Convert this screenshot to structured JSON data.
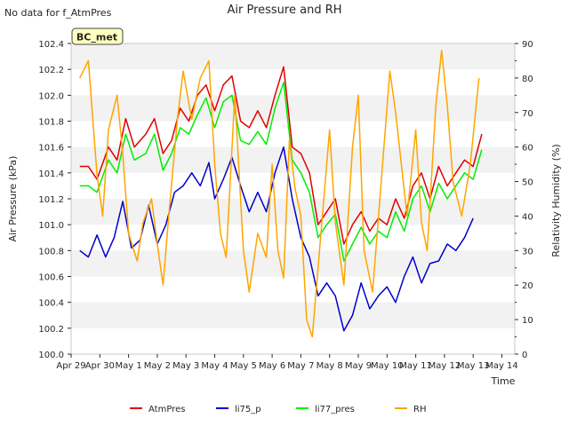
{
  "chart_data": {
    "type": "line",
    "title": "Air Pressure and RH",
    "corner_note": "No data for f_AtmPres",
    "site_badge": "BC_met",
    "xlabel": "Time",
    "ylabel_left": "Air Pressure (kPa)",
    "ylabel_right": "Relativity Humidity (%)",
    "x_ticks": [
      "Apr 29",
      "Apr 30",
      "May 1",
      "May 2",
      "May 3",
      "May 4",
      "May 5",
      "May 6",
      "May 7",
      "May 8",
      "May 9",
      "May 10",
      "May 11",
      "May 12",
      "May 13",
      "May 14"
    ],
    "ylim_left": [
      100.0,
      102.4
    ],
    "y_ticks_left": [
      "100.0",
      "100.2",
      "100.4",
      "100.6",
      "100.8",
      "101.0",
      "101.2",
      "101.4",
      "101.6",
      "101.8",
      "102.0",
      "102.2",
      "102.4"
    ],
    "ylim_right": [
      0,
      90
    ],
    "y_ticks_right": [
      "0",
      "10",
      "20",
      "30",
      "40",
      "50",
      "60",
      "70",
      "80",
      "90"
    ],
    "grid": "horizontal bands",
    "legend_position": "bottom",
    "series": [
      {
        "name": "AtmPres",
        "axis": "left",
        "color": "#e00000",
        "points": [
          [
            0.3,
            101.45
          ],
          [
            0.6,
            101.45
          ],
          [
            0.9,
            101.35
          ],
          [
            1.3,
            101.6
          ],
          [
            1.6,
            101.5
          ],
          [
            1.9,
            101.82
          ],
          [
            2.2,
            101.6
          ],
          [
            2.6,
            101.7
          ],
          [
            2.9,
            101.82
          ],
          [
            3.2,
            101.55
          ],
          [
            3.5,
            101.65
          ],
          [
            3.8,
            101.9
          ],
          [
            4.1,
            101.8
          ],
          [
            4.4,
            102.0
          ],
          [
            4.7,
            102.08
          ],
          [
            5.0,
            101.88
          ],
          [
            5.3,
            102.08
          ],
          [
            5.6,
            102.15
          ],
          [
            5.9,
            101.8
          ],
          [
            6.2,
            101.75
          ],
          [
            6.5,
            101.88
          ],
          [
            6.8,
            101.75
          ],
          [
            7.1,
            102.0
          ],
          [
            7.4,
            102.22
          ],
          [
            7.7,
            101.6
          ],
          [
            8.0,
            101.55
          ],
          [
            8.3,
            101.4
          ],
          [
            8.6,
            101.0
          ],
          [
            8.9,
            101.1
          ],
          [
            9.2,
            101.2
          ],
          [
            9.5,
            100.85
          ],
          [
            9.8,
            101.0
          ],
          [
            10.1,
            101.1
          ],
          [
            10.4,
            100.95
          ],
          [
            10.7,
            101.05
          ],
          [
            11.0,
            101.0
          ],
          [
            11.3,
            101.2
          ],
          [
            11.6,
            101.05
          ],
          [
            11.9,
            101.3
          ],
          [
            12.2,
            101.4
          ],
          [
            12.5,
            101.2
          ],
          [
            12.8,
            101.45
          ],
          [
            13.1,
            101.3
          ],
          [
            13.4,
            101.4
          ],
          [
            13.7,
            101.5
          ],
          [
            14.0,
            101.45
          ],
          [
            14.3,
            101.7
          ]
        ]
      },
      {
        "name": "li75_p",
        "axis": "left",
        "color": "#0000cc",
        "points": [
          [
            0.3,
            100.8
          ],
          [
            0.6,
            100.75
          ],
          [
            0.9,
            100.92
          ],
          [
            1.2,
            100.75
          ],
          [
            1.5,
            100.9
          ],
          [
            1.8,
            101.18
          ],
          [
            2.1,
            100.82
          ],
          [
            2.4,
            100.88
          ],
          [
            2.7,
            101.15
          ],
          [
            3.0,
            100.85
          ],
          [
            3.3,
            101.0
          ],
          [
            3.6,
            101.25
          ],
          [
            3.9,
            101.3
          ],
          [
            4.2,
            101.4
          ],
          [
            4.5,
            101.3
          ],
          [
            4.8,
            101.48
          ],
          [
            5.0,
            101.2
          ],
          [
            5.3,
            101.35
          ],
          [
            5.6,
            101.52
          ],
          [
            5.9,
            101.3
          ],
          [
            6.2,
            101.1
          ],
          [
            6.5,
            101.25
          ],
          [
            6.8,
            101.1
          ],
          [
            7.1,
            101.4
          ],
          [
            7.4,
            101.6
          ],
          [
            7.7,
            101.2
          ],
          [
            8.0,
            100.9
          ],
          [
            8.3,
            100.75
          ],
          [
            8.6,
            100.45
          ],
          [
            8.9,
            100.55
          ],
          [
            9.2,
            100.45
          ],
          [
            9.5,
            100.18
          ],
          [
            9.8,
            100.3
          ],
          [
            10.1,
            100.55
          ],
          [
            10.4,
            100.35
          ],
          [
            10.7,
            100.45
          ],
          [
            11.0,
            100.52
          ],
          [
            11.3,
            100.4
          ],
          [
            11.6,
            100.6
          ],
          [
            11.9,
            100.75
          ],
          [
            12.2,
            100.55
          ],
          [
            12.5,
            100.7
          ],
          [
            12.8,
            100.72
          ],
          [
            13.1,
            100.85
          ],
          [
            13.4,
            100.8
          ],
          [
            13.7,
            100.9
          ],
          [
            14.0,
            101.05
          ]
        ]
      },
      {
        "name": "li77_pres",
        "axis": "left",
        "color": "#00ee00",
        "points": [
          [
            0.3,
            101.3
          ],
          [
            0.6,
            101.3
          ],
          [
            0.9,
            101.25
          ],
          [
            1.3,
            101.5
          ],
          [
            1.6,
            101.4
          ],
          [
            1.9,
            101.7
          ],
          [
            2.2,
            101.5
          ],
          [
            2.6,
            101.55
          ],
          [
            2.9,
            101.7
          ],
          [
            3.2,
            101.42
          ],
          [
            3.5,
            101.55
          ],
          [
            3.8,
            101.75
          ],
          [
            4.1,
            101.7
          ],
          [
            4.4,
            101.85
          ],
          [
            4.7,
            101.98
          ],
          [
            5.0,
            101.75
          ],
          [
            5.3,
            101.95
          ],
          [
            5.6,
            102.0
          ],
          [
            5.9,
            101.65
          ],
          [
            6.2,
            101.62
          ],
          [
            6.5,
            101.72
          ],
          [
            6.8,
            101.62
          ],
          [
            7.1,
            101.9
          ],
          [
            7.4,
            102.1
          ],
          [
            7.7,
            101.5
          ],
          [
            8.0,
            101.4
          ],
          [
            8.3,
            101.25
          ],
          [
            8.6,
            100.9
          ],
          [
            8.9,
            101.0
          ],
          [
            9.2,
            101.08
          ],
          [
            9.5,
            100.72
          ],
          [
            9.8,
            100.85
          ],
          [
            10.1,
            100.98
          ],
          [
            10.4,
            100.85
          ],
          [
            10.7,
            100.95
          ],
          [
            11.0,
            100.9
          ],
          [
            11.3,
            101.1
          ],
          [
            11.6,
            100.95
          ],
          [
            11.9,
            101.2
          ],
          [
            12.2,
            101.3
          ],
          [
            12.5,
            101.1
          ],
          [
            12.8,
            101.32
          ],
          [
            13.1,
            101.2
          ],
          [
            13.4,
            101.3
          ],
          [
            13.7,
            101.4
          ],
          [
            14.0,
            101.35
          ],
          [
            14.3,
            101.58
          ]
        ]
      },
      {
        "name": "RH",
        "axis": "right",
        "color": "#ffa500",
        "points": [
          [
            0.3,
            80
          ],
          [
            0.6,
            85
          ],
          [
            0.9,
            52
          ],
          [
            1.1,
            40
          ],
          [
            1.3,
            65
          ],
          [
            1.6,
            75
          ],
          [
            1.8,
            58
          ],
          [
            2.0,
            35
          ],
          [
            2.3,
            27
          ],
          [
            2.5,
            38
          ],
          [
            2.8,
            45
          ],
          [
            3.0,
            32
          ],
          [
            3.2,
            20
          ],
          [
            3.4,
            40
          ],
          [
            3.7,
            68
          ],
          [
            3.9,
            82
          ],
          [
            4.2,
            68
          ],
          [
            4.5,
            80
          ],
          [
            4.8,
            85
          ],
          [
            5.0,
            55
          ],
          [
            5.2,
            35
          ],
          [
            5.4,
            28
          ],
          [
            5.7,
            75
          ],
          [
            6.0,
            30
          ],
          [
            6.2,
            18
          ],
          [
            6.5,
            35
          ],
          [
            6.8,
            28
          ],
          [
            7.0,
            55
          ],
          [
            7.2,
            30
          ],
          [
            7.4,
            22
          ],
          [
            7.6,
            62
          ],
          [
            7.8,
            48
          ],
          [
            8.0,
            40
          ],
          [
            8.2,
            10
          ],
          [
            8.4,
            5
          ],
          [
            8.7,
            35
          ],
          [
            9.0,
            65
          ],
          [
            9.2,
            38
          ],
          [
            9.5,
            20
          ],
          [
            9.8,
            60
          ],
          [
            10.0,
            75
          ],
          [
            10.2,
            30
          ],
          [
            10.5,
            18
          ],
          [
            10.8,
            50
          ],
          [
            11.1,
            82
          ],
          [
            11.3,
            70
          ],
          [
            11.5,
            55
          ],
          [
            11.7,
            40
          ],
          [
            12.0,
            65
          ],
          [
            12.2,
            38
          ],
          [
            12.4,
            30
          ],
          [
            12.7,
            72
          ],
          [
            12.9,
            88
          ],
          [
            13.1,
            72
          ],
          [
            13.3,
            50
          ],
          [
            13.6,
            40
          ],
          [
            13.9,
            55
          ],
          [
            14.2,
            80
          ]
        ]
      }
    ]
  }
}
